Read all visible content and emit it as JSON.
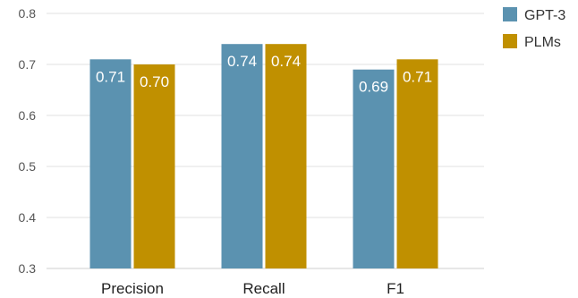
{
  "chart_data": {
    "type": "bar",
    "title": "",
    "xlabel": "",
    "ylabel": "",
    "categories": [
      "Precision",
      "Recall",
      "F1"
    ],
    "series": [
      {
        "name": "GPT-3",
        "values": [
          0.71,
          0.74,
          0.69
        ],
        "labels": [
          "0.71",
          "0.74",
          "0.69"
        ],
        "color": "#5b92b0"
      },
      {
        "name": "PLMs",
        "values": [
          0.7,
          0.74,
          0.71
        ],
        "labels": [
          "0.70",
          "0.74",
          "0.71"
        ],
        "color": "#c09000"
      }
    ],
    "ylim": [
      0.3,
      0.8
    ],
    "yticks": [
      "0.3",
      "0.4",
      "0.5",
      "0.6",
      "0.7",
      "0.8"
    ],
    "grid": true,
    "legend_position": "top-right"
  }
}
